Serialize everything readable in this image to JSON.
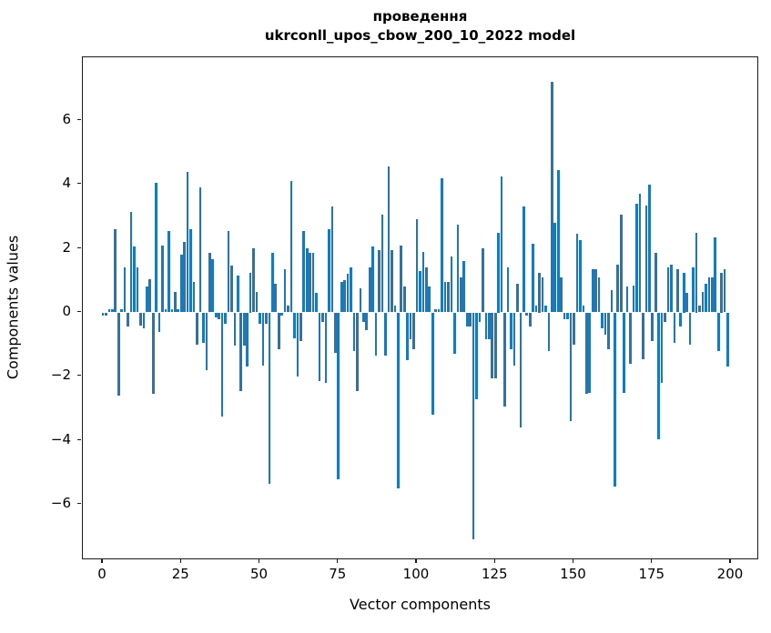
{
  "title": {
    "line1": "проведення",
    "line2": "ukrconll_upos_cbow_200_10_2022 model"
  },
  "axes": {
    "xlabel": "Vector components",
    "ylabel": "Components values",
    "x_ticks": [
      0,
      25,
      50,
      75,
      100,
      125,
      150,
      175,
      200
    ],
    "y_ticks": [
      {
        "value": 6,
        "label": "6"
      },
      {
        "value": 4,
        "label": "4"
      },
      {
        "value": 2,
        "label": "2"
      },
      {
        "value": 0,
        "label": "0"
      },
      {
        "value": -2,
        "label": "−2"
      },
      {
        "value": -4,
        "label": "−4"
      },
      {
        "value": -6,
        "label": "−6"
      }
    ]
  },
  "chart_data": {
    "type": "bar",
    "title": "проведення\nukrconll_upos_cbow_200_10_2022 model",
    "xlabel": "Vector components",
    "ylabel": "Components values",
    "xlim": [
      -7,
      209
    ],
    "ylim": [
      -7.7,
      7.95
    ],
    "grid": false,
    "bar_color": "#1f77b4",
    "x_range_note": "x = component index 0..199",
    "values": [
      -0.1,
      -0.1,
      0.1,
      0.1,
      2.6,
      -2.6,
      0.1,
      1.4,
      -0.45,
      3.15,
      2.05,
      1.4,
      -0.4,
      -0.5,
      0.8,
      1.05,
      -2.55,
      4.05,
      -0.6,
      2.1,
      0.1,
      2.55,
      0.1,
      0.65,
      0.1,
      1.8,
      2.2,
      4.4,
      2.6,
      0.95,
      -1.0,
      3.9,
      -0.95,
      -1.8,
      1.85,
      1.65,
      -0.15,
      -0.2,
      -3.25,
      -0.35,
      2.55,
      1.45,
      -1.05,
      1.15,
      -2.45,
      -1.05,
      -1.7,
      1.25,
      2.0,
      0.65,
      -0.35,
      -1.65,
      -0.35,
      -5.35,
      1.85,
      0.9,
      -1.15,
      -0.1,
      1.35,
      0.2,
      4.1,
      -0.8,
      -2.0,
      -0.9,
      2.55,
      2.0,
      1.85,
      1.85,
      0.6,
      -2.15,
      -0.3,
      -2.2,
      2.6,
      3.3,
      -1.25,
      -5.2,
      0.95,
      1.0,
      1.2,
      1.4,
      -1.2,
      -2.45,
      0.75,
      -0.3,
      -0.55,
      1.4,
      2.05,
      -1.35,
      1.95,
      3.05,
      -1.35,
      4.55,
      1.95,
      0.2,
      -5.5,
      2.1,
      0.8,
      -1.5,
      -0.85,
      -1.15,
      2.9,
      1.3,
      1.9,
      1.4,
      0.8,
      -3.2,
      0.1,
      0.1,
      4.2,
      0.95,
      0.95,
      1.75,
      -1.3,
      2.75,
      1.1,
      1.6,
      -0.45,
      -0.45,
      -7.1,
      -2.7,
      -0.3,
      2.0,
      -0.85,
      -0.85,
      -2.05,
      -2.05,
      2.5,
      4.25,
      -2.95,
      1.4,
      -1.15,
      -1.65,
      0.9,
      -3.6,
      3.3,
      -0.1,
      -0.45,
      2.15,
      0.2,
      1.25,
      1.1,
      0.2,
      -1.2,
      7.2,
      2.8,
      4.45,
      1.1,
      -0.2,
      -0.2,
      -3.4,
      -1.0,
      2.45,
      2.25,
      0.2,
      -2.55,
      -2.5,
      1.35,
      1.35,
      1.1,
      -0.5,
      -0.7,
      -1.15,
      0.7,
      -5.45,
      1.5,
      3.05,
      -2.5,
      0.8,
      -1.6,
      0.85,
      3.4,
      3.7,
      -1.45,
      3.35,
      4.0,
      -0.9,
      1.85,
      -3.95,
      -2.2,
      -0.3,
      1.4,
      1.5,
      -0.95,
      1.35,
      -0.45,
      1.25,
      0.6,
      -1.0,
      1.4,
      2.5,
      0.2,
      0.65,
      0.9,
      1.1,
      1.1,
      2.35,
      -1.2,
      1.25,
      1.35,
      -1.7
    ]
  }
}
